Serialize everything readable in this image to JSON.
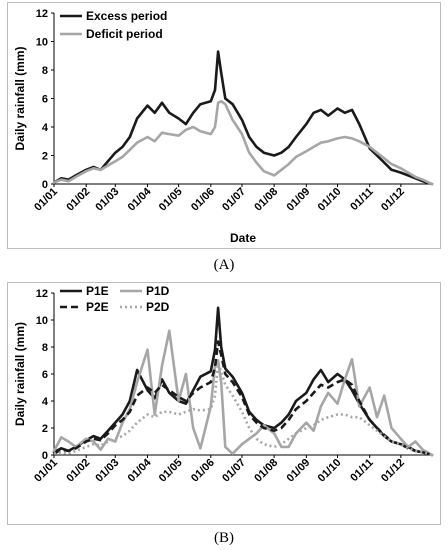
{
  "labels": {
    "a": "(A)",
    "b": "(B)"
  },
  "chart_data": [
    {
      "type": "line",
      "panel": "A",
      "xlabel": "Date",
      "ylabel": "Daily rainfall (mm)",
      "ylim": [
        0,
        12
      ],
      "yticks": [
        0,
        2,
        4,
        6,
        8,
        10,
        12
      ],
      "xlim": [
        "01/01",
        "31/12"
      ],
      "xticks": [
        "01/01",
        "01/02",
        "01/03",
        "01/04",
        "01/05",
        "01/06",
        "01/07",
        "01/08",
        "01/09",
        "01/10",
        "01/11",
        "01/12"
      ],
      "legend_position": "top-left",
      "series": [
        {
          "name": "Excess period",
          "color": "#1a1a1a",
          "dash": "solid",
          "x": [
            "01/01",
            "08/01",
            "15/01",
            "22/01",
            "01/02",
            "08/02",
            "15/02",
            "22/02",
            "01/03",
            "08/03",
            "15/03",
            "22/03",
            "01/04",
            "08/04",
            "15/04",
            "22/04",
            "01/05",
            "08/05",
            "15/05",
            "22/05",
            "01/06",
            "05/06",
            "08/06",
            "11/06",
            "15/06",
            "22/06",
            "01/07",
            "08/07",
            "15/07",
            "22/07",
            "01/08",
            "08/08",
            "15/08",
            "22/08",
            "01/09",
            "08/09",
            "15/09",
            "22/09",
            "01/10",
            "08/10",
            "15/10",
            "22/10",
            "01/11",
            "08/11",
            "15/11",
            "22/11",
            "01/12",
            "08/12",
            "15/12",
            "22/12",
            "31/12"
          ],
          "y": [
            0.1,
            0.4,
            0.3,
            0.6,
            1.0,
            1.2,
            1.0,
            1.6,
            2.2,
            2.6,
            3.3,
            4.6,
            5.5,
            5.0,
            5.7,
            5.0,
            4.6,
            4.2,
            5.0,
            5.6,
            5.8,
            6.6,
            9.3,
            7.8,
            6.0,
            5.6,
            4.5,
            3.3,
            2.6,
            2.2,
            2.0,
            2.2,
            2.6,
            3.3,
            4.2,
            5.0,
            5.2,
            4.8,
            5.3,
            5.0,
            5.2,
            4.2,
            2.5,
            2.0,
            1.5,
            1.0,
            0.8,
            0.6,
            0.4,
            0.2,
            0.0
          ]
        },
        {
          "name": "Deficit period",
          "color": "#a6a6a6",
          "dash": "solid",
          "x": [
            "01/01",
            "08/01",
            "15/01",
            "22/01",
            "01/02",
            "08/02",
            "15/02",
            "22/02",
            "01/03",
            "08/03",
            "15/03",
            "22/03",
            "01/04",
            "08/04",
            "15/04",
            "22/04",
            "01/05",
            "08/05",
            "15/05",
            "22/05",
            "01/06",
            "05/06",
            "08/06",
            "11/06",
            "15/06",
            "22/06",
            "01/07",
            "08/07",
            "15/07",
            "22/07",
            "01/08",
            "08/08",
            "15/08",
            "22/08",
            "01/09",
            "08/09",
            "15/09",
            "22/09",
            "01/10",
            "08/10",
            "15/10",
            "22/10",
            "01/11",
            "08/11",
            "15/11",
            "22/11",
            "01/12",
            "08/12",
            "15/12",
            "22/12",
            "31/12"
          ],
          "y": [
            0.1,
            0.3,
            0.2,
            0.5,
            0.9,
            1.1,
            1.0,
            1.3,
            1.6,
            1.9,
            2.4,
            2.9,
            3.3,
            3.0,
            3.6,
            3.5,
            3.4,
            3.8,
            4.0,
            3.7,
            3.5,
            4.0,
            5.7,
            5.8,
            5.6,
            4.5,
            3.5,
            2.2,
            1.5,
            0.9,
            0.6,
            1.0,
            1.4,
            1.9,
            2.3,
            2.6,
            2.9,
            3.0,
            3.2,
            3.3,
            3.2,
            3.0,
            2.6,
            2.2,
            1.8,
            1.4,
            1.1,
            0.8,
            0.5,
            0.3,
            0.0
          ]
        }
      ]
    },
    {
      "type": "line",
      "panel": "B",
      "xlabel": "",
      "ylabel": "Daily rainfall (mm)",
      "ylim": [
        0,
        12
      ],
      "yticks": [
        0,
        2,
        4,
        6,
        8,
        10,
        12
      ],
      "xlim": [
        "01/01",
        "31/12"
      ],
      "xticks": [
        "01/01",
        "01/02",
        "01/03",
        "01/04",
        "01/05",
        "01/06",
        "01/07",
        "01/08",
        "01/09",
        "01/10",
        "01/11",
        "01/12"
      ],
      "legend_position": "top-left",
      "series": [
        {
          "name": "P1E",
          "color": "#1a1a1a",
          "dash": "solid",
          "x": [
            "01/01",
            "08/01",
            "15/01",
            "22/01",
            "01/02",
            "08/02",
            "15/02",
            "22/02",
            "01/03",
            "08/03",
            "15/03",
            "22/03",
            "01/04",
            "08/04",
            "15/04",
            "22/04",
            "01/05",
            "08/05",
            "15/05",
            "22/05",
            "01/06",
            "05/06",
            "08/06",
            "11/06",
            "15/06",
            "22/06",
            "01/07",
            "08/07",
            "15/07",
            "22/07",
            "01/08",
            "08/08",
            "15/08",
            "22/08",
            "01/09",
            "08/09",
            "15/09",
            "22/09",
            "01/10",
            "08/10",
            "15/10",
            "22/10",
            "01/11",
            "08/11",
            "15/11",
            "22/11",
            "01/12",
            "08/12",
            "15/12",
            "22/12",
            "31/12"
          ],
          "y": [
            0.2,
            0.5,
            0.3,
            0.6,
            1.1,
            1.4,
            1.2,
            1.8,
            2.4,
            3.0,
            4.0,
            6.3,
            4.8,
            4.2,
            5.6,
            4.6,
            4.0,
            3.8,
            4.8,
            5.8,
            6.2,
            7.8,
            10.9,
            8.0,
            6.4,
            5.8,
            4.6,
            3.2,
            2.6,
            2.2,
            2.0,
            2.4,
            3.0,
            4.0,
            4.6,
            5.6,
            6.3,
            5.4,
            6.0,
            5.6,
            4.8,
            3.8,
            2.6,
            2.0,
            1.4,
            1.0,
            0.8,
            0.6,
            0.3,
            0.2,
            0.0
          ]
        },
        {
          "name": "P1D",
          "color": "#a6a6a6",
          "dash": "solid",
          "x": [
            "01/01",
            "08/01",
            "15/01",
            "22/01",
            "01/02",
            "08/02",
            "15/02",
            "22/02",
            "01/03",
            "08/03",
            "15/03",
            "22/03",
            "01/04",
            "08/04",
            "15/04",
            "22/04",
            "01/05",
            "08/05",
            "15/05",
            "22/05",
            "01/06",
            "05/06",
            "08/06",
            "11/06",
            "15/06",
            "22/06",
            "01/07",
            "08/07",
            "15/07",
            "22/07",
            "01/08",
            "08/08",
            "15/08",
            "22/08",
            "01/09",
            "08/09",
            "15/09",
            "22/09",
            "01/10",
            "08/10",
            "15/10",
            "22/10",
            "01/11",
            "08/11",
            "15/11",
            "22/11",
            "01/12",
            "08/12",
            "15/12",
            "22/12",
            "31/12"
          ],
          "y": [
            0.3,
            1.3,
            1.0,
            0.6,
            1.2,
            1.0,
            0.4,
            1.2,
            1.0,
            2.4,
            3.4,
            5.4,
            7.8,
            3.0,
            6.6,
            9.2,
            4.0,
            6.0,
            2.0,
            0.5,
            3.6,
            6.6,
            7.0,
            5.4,
            0.6,
            0.1,
            0.8,
            1.2,
            1.6,
            2.2,
            1.6,
            0.6,
            0.6,
            1.6,
            2.4,
            1.8,
            3.6,
            4.6,
            3.8,
            5.6,
            7.1,
            3.6,
            5.0,
            2.8,
            4.4,
            2.0,
            1.2,
            0.6,
            1.0,
            0.4,
            0.0
          ]
        },
        {
          "name": "P2E",
          "color": "#1a1a1a",
          "dash": "dashed",
          "x": [
            "01/01",
            "08/01",
            "15/01",
            "22/01",
            "01/02",
            "08/02",
            "15/02",
            "22/02",
            "01/03",
            "08/03",
            "15/03",
            "22/03",
            "01/04",
            "08/04",
            "15/04",
            "22/04",
            "01/05",
            "08/05",
            "15/05",
            "22/05",
            "01/06",
            "05/06",
            "08/06",
            "11/06",
            "15/06",
            "22/06",
            "01/07",
            "08/07",
            "15/07",
            "22/07",
            "01/08",
            "08/08",
            "15/08",
            "22/08",
            "01/09",
            "08/09",
            "15/09",
            "22/09",
            "01/10",
            "08/10",
            "15/10",
            "22/10",
            "01/11",
            "08/11",
            "15/11",
            "22/11",
            "01/12",
            "08/12",
            "15/12",
            "22/12",
            "31/12"
          ],
          "y": [
            0.1,
            0.4,
            0.3,
            0.5,
            1.0,
            1.2,
            1.1,
            1.6,
            2.2,
            2.6,
            3.2,
            4.4,
            5.0,
            4.6,
            5.2,
            4.8,
            4.3,
            4.0,
            4.6,
            5.0,
            5.4,
            6.5,
            8.4,
            7.4,
            6.0,
            5.4,
            4.3,
            3.0,
            2.4,
            2.0,
            1.8,
            2.0,
            2.6,
            3.4,
            4.0,
            4.6,
            5.2,
            5.0,
            5.4,
            5.6,
            5.2,
            4.0,
            2.6,
            2.0,
            1.5,
            1.0,
            0.8,
            0.5,
            0.3,
            0.2,
            0.0
          ]
        },
        {
          "name": "P2D",
          "color": "#a6a6a6",
          "dash": "dotted",
          "x": [
            "01/01",
            "08/01",
            "15/01",
            "22/01",
            "01/02",
            "08/02",
            "15/02",
            "22/02",
            "01/03",
            "08/03",
            "15/03",
            "22/03",
            "01/04",
            "08/04",
            "15/04",
            "22/04",
            "01/05",
            "08/05",
            "15/05",
            "22/05",
            "01/06",
            "05/06",
            "08/06",
            "11/06",
            "15/06",
            "22/06",
            "01/07",
            "08/07",
            "15/07",
            "22/07",
            "01/08",
            "08/08",
            "15/08",
            "22/08",
            "01/09",
            "08/09",
            "15/09",
            "22/09",
            "01/10",
            "08/10",
            "15/10",
            "22/10",
            "01/11",
            "08/11",
            "15/11",
            "22/11",
            "01/12",
            "08/12",
            "15/12",
            "22/12",
            "31/12"
          ],
          "y": [
            0.1,
            0.2,
            0.1,
            0.3,
            0.6,
            0.8,
            0.7,
            1.0,
            1.2,
            1.4,
            1.8,
            2.4,
            3.0,
            2.8,
            3.2,
            3.2,
            3.0,
            3.2,
            3.4,
            3.3,
            3.4,
            4.4,
            6.8,
            6.2,
            5.2,
            4.4,
            3.2,
            2.0,
            1.2,
            0.8,
            0.6,
            0.8,
            1.2,
            1.6,
            2.0,
            2.2,
            2.6,
            2.8,
            3.0,
            3.0,
            2.8,
            2.8,
            2.2,
            1.8,
            1.4,
            1.0,
            0.8,
            0.5,
            0.3,
            0.2,
            0.0
          ]
        }
      ]
    }
  ]
}
